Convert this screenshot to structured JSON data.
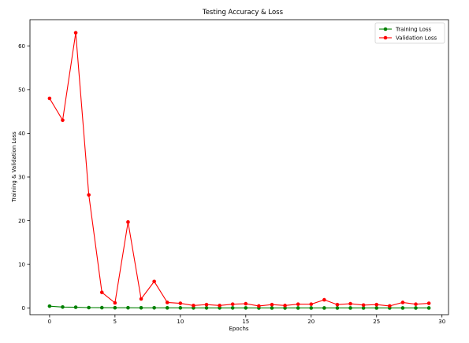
{
  "chart_data": {
    "type": "line",
    "title": "Testing Accuracy & Loss",
    "xlabel": "Epochs",
    "ylabel": "Training & Validation Loss",
    "xlim": [
      -1.5,
      30.5
    ],
    "ylim": [
      -1.5,
      66
    ],
    "xticks": [
      0,
      5,
      10,
      15,
      20,
      25,
      30
    ],
    "yticks": [
      0,
      10,
      20,
      30,
      40,
      50,
      60
    ],
    "grid": false,
    "legend_position": "top-right",
    "x": [
      0,
      1,
      2,
      3,
      4,
      5,
      6,
      7,
      8,
      9,
      10,
      11,
      12,
      13,
      14,
      15,
      16,
      17,
      18,
      19,
      20,
      21,
      22,
      23,
      24,
      25,
      26,
      27,
      28,
      29
    ],
    "series": [
      {
        "name": "Training Loss",
        "color": "#008000",
        "marker": "circle",
        "values": [
          0.45,
          0.25,
          0.2,
          0.12,
          0.1,
          0.08,
          0.08,
          0.07,
          0.07,
          0.06,
          0.06,
          0.05,
          0.05,
          0.05,
          0.05,
          0.05,
          0.04,
          0.04,
          0.04,
          0.04,
          0.04,
          0.04,
          0.04,
          0.04,
          0.04,
          0.04,
          0.04,
          0.04,
          0.04,
          0.04
        ]
      },
      {
        "name": "Validation Loss",
        "color": "#ff0000",
        "marker": "circle",
        "values": [
          48.0,
          43.0,
          63.0,
          25.9,
          3.6,
          1.2,
          19.7,
          2.1,
          6.1,
          1.3,
          1.1,
          0.6,
          0.8,
          0.6,
          0.9,
          1.0,
          0.5,
          0.8,
          0.6,
          0.9,
          0.9,
          1.9,
          0.8,
          1.0,
          0.7,
          0.8,
          0.5,
          1.3,
          0.9,
          1.1
        ]
      }
    ]
  }
}
